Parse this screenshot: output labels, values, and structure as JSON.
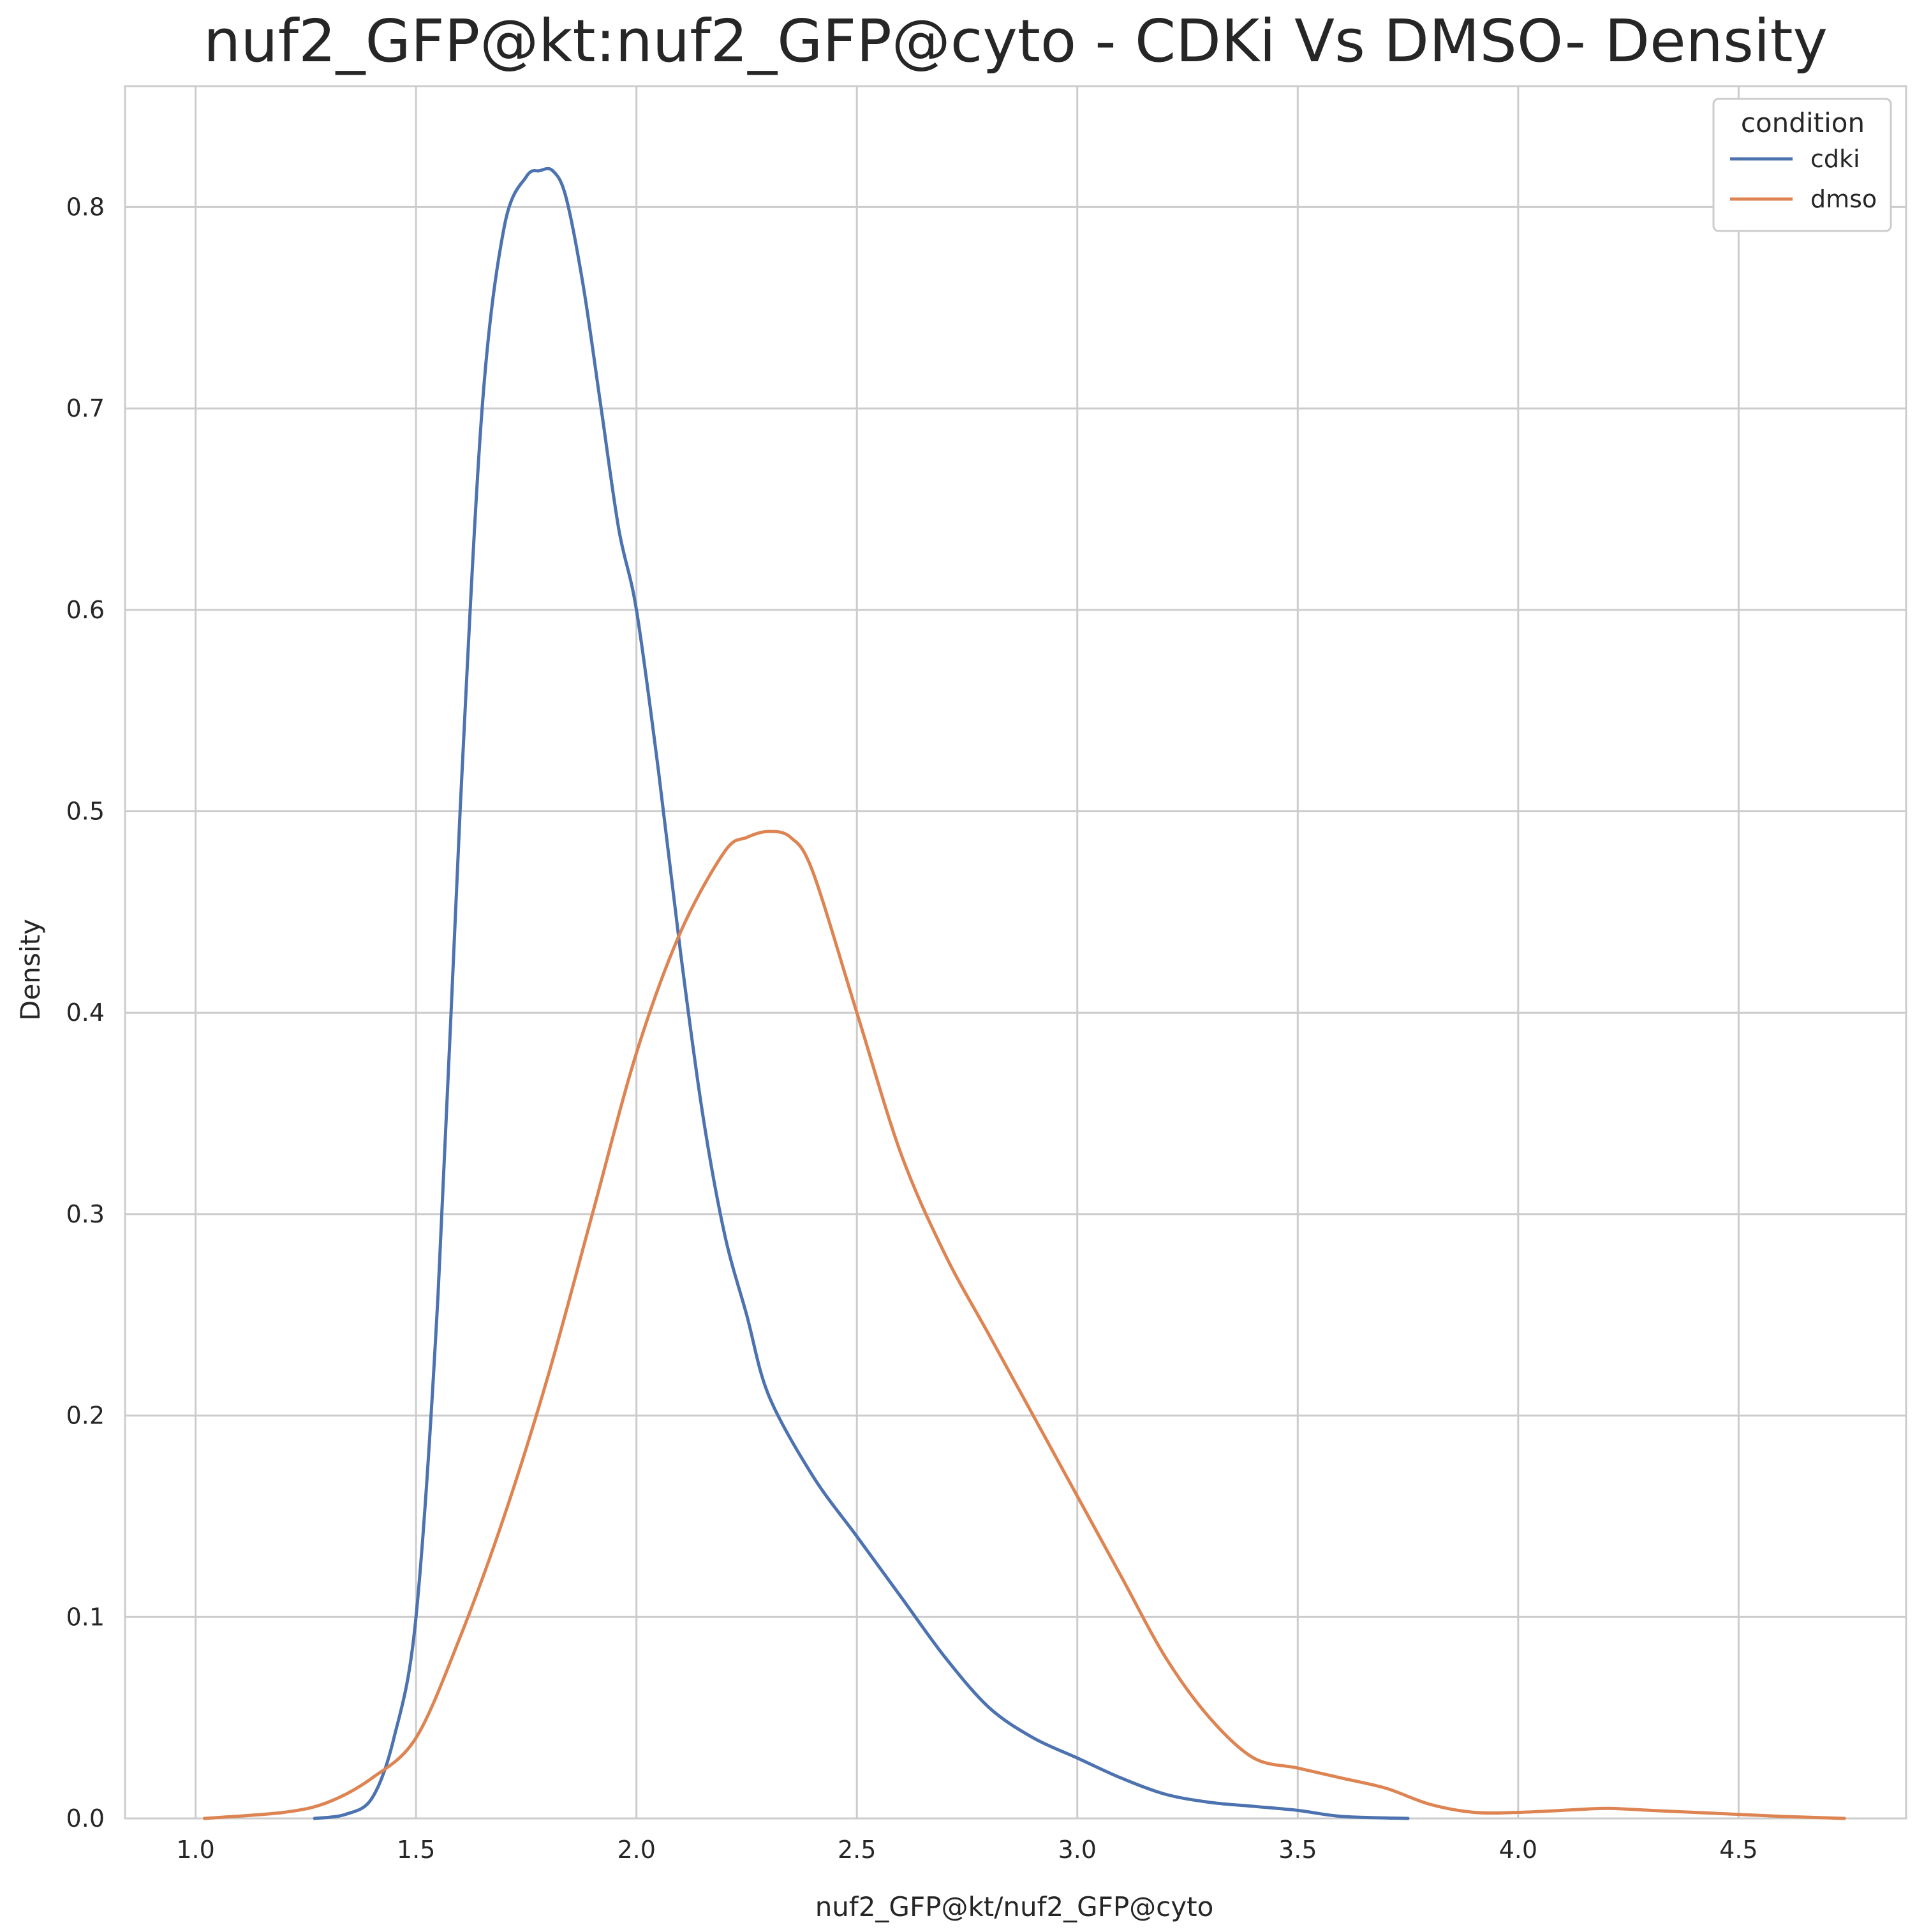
{
  "chart_data": {
    "type": "line",
    "title": "nuf2_GFP@kt:nuf2_GFP@cyto - CDKi Vs DMSO- Density",
    "xlabel": "nuf2_GFP@kt/nuf2_GFP@cyto",
    "ylabel": "Density",
    "xlim": [
      0.84,
      4.88
    ],
    "ylim": [
      0,
      0.86
    ],
    "xticks": [
      1.0,
      1.5,
      2.0,
      2.5,
      3.0,
      3.5,
      4.0,
      4.5
    ],
    "xtick_labels": [
      "1.0",
      "1.5",
      "2.0",
      "2.5",
      "3.0",
      "3.5",
      "4.0",
      "4.5"
    ],
    "yticks": [
      0.0,
      0.1,
      0.2,
      0.3,
      0.4,
      0.5,
      0.6,
      0.7,
      0.8
    ],
    "ytick_labels": [
      "0.0",
      "0.1",
      "0.2",
      "0.3",
      "0.4",
      "0.5",
      "0.6",
      "0.7",
      "0.8"
    ],
    "grid": true,
    "legend": {
      "title": "condition",
      "placement": "top-right"
    },
    "series": [
      {
        "name": "cdki",
        "color": "#4c72b0",
        "x": [
          1.27,
          1.34,
          1.4,
          1.45,
          1.5,
          1.55,
          1.6,
          1.65,
          1.7,
          1.75,
          1.78,
          1.81,
          1.84,
          1.88,
          1.92,
          1.96,
          2.0,
          2.05,
          2.1,
          2.15,
          2.2,
          2.25,
          2.3,
          2.4,
          2.5,
          2.6,
          2.7,
          2.8,
          2.9,
          3.0,
          3.1,
          3.2,
          3.3,
          3.4,
          3.5,
          3.6,
          3.75
        ],
        "y": [
          0.0,
          0.002,
          0.01,
          0.04,
          0.1,
          0.26,
          0.5,
          0.7,
          0.79,
          0.815,
          0.818,
          0.818,
          0.805,
          0.76,
          0.7,
          0.64,
          0.6,
          0.52,
          0.43,
          0.35,
          0.29,
          0.25,
          0.21,
          0.17,
          0.14,
          0.11,
          0.08,
          0.055,
          0.04,
          0.03,
          0.02,
          0.012,
          0.008,
          0.006,
          0.004,
          0.001,
          0.0
        ],
        "marker": "line"
      },
      {
        "name": "dmso",
        "color": "#dd8452",
        "x": [
          1.02,
          1.2,
          1.3,
          1.4,
          1.5,
          1.6,
          1.7,
          1.8,
          1.9,
          2.0,
          2.1,
          2.2,
          2.25,
          2.3,
          2.35,
          2.4,
          2.5,
          2.6,
          2.7,
          2.8,
          2.9,
          3.0,
          3.1,
          3.2,
          3.3,
          3.4,
          3.5,
          3.6,
          3.7,
          3.8,
          3.9,
          4.0,
          4.1,
          4.2,
          4.3,
          4.4,
          4.5,
          4.6,
          4.74
        ],
        "y": [
          0.0,
          0.003,
          0.008,
          0.02,
          0.04,
          0.09,
          0.15,
          0.22,
          0.3,
          0.38,
          0.44,
          0.48,
          0.487,
          0.49,
          0.487,
          0.47,
          0.4,
          0.33,
          0.28,
          0.24,
          0.2,
          0.16,
          0.12,
          0.08,
          0.05,
          0.03,
          0.025,
          0.02,
          0.015,
          0.007,
          0.003,
          0.003,
          0.004,
          0.005,
          0.004,
          0.003,
          0.002,
          0.001,
          0.0
        ],
        "marker": "line"
      }
    ]
  }
}
